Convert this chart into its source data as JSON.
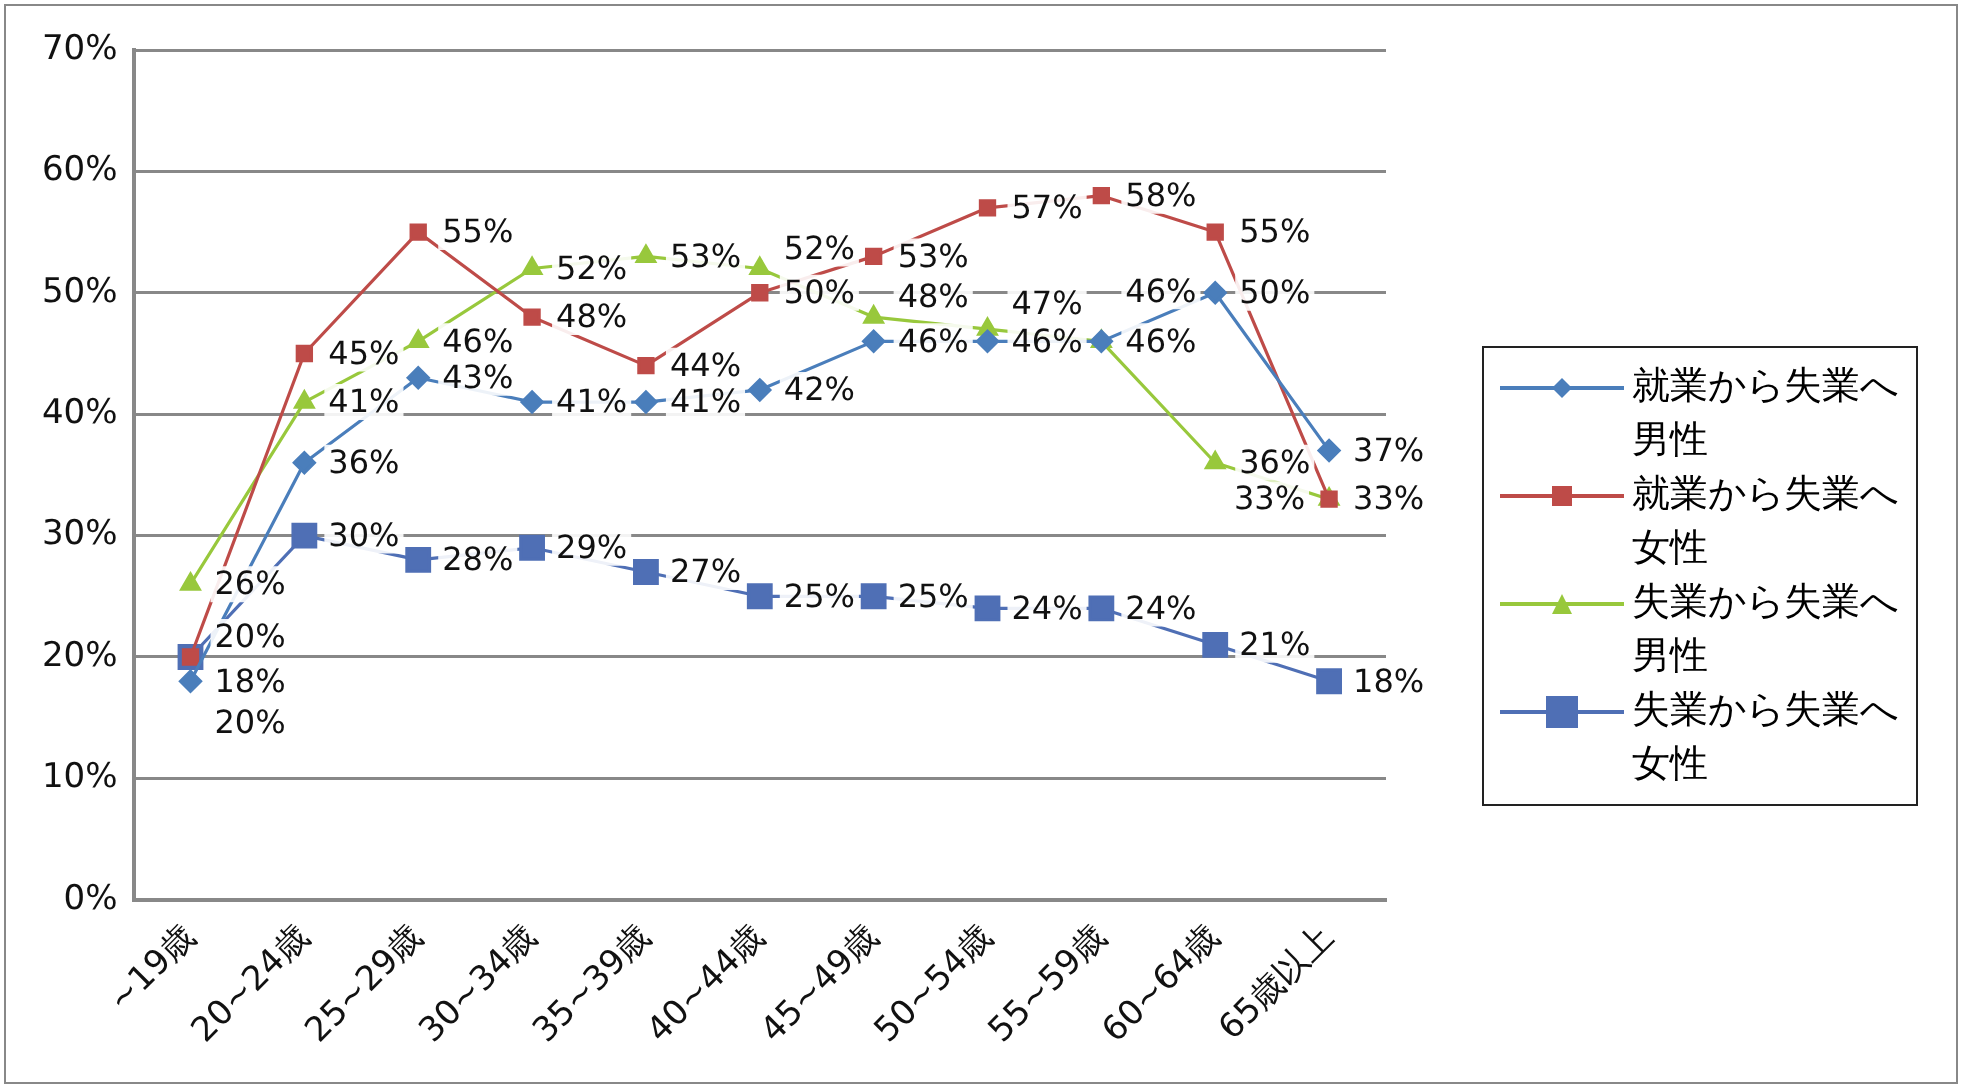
{
  "chart_data": {
    "type": "line",
    "categories": [
      "~19歳",
      "20~24歳",
      "25~29歳",
      "30~34歳",
      "35~39歳",
      "40~44歳",
      "45~49歳",
      "50~54歳",
      "55~59歳",
      "60~64歳",
      "65歳以上"
    ],
    "series": [
      {
        "name": "就業から失業へ男性",
        "color": "#4a7ebb",
        "marker": "diamond",
        "values": [
          18,
          36,
          43,
          41,
          41,
          42,
          46,
          46,
          46,
          50,
          37
        ],
        "value_labels": [
          "18%",
          "36%",
          "43%",
          "41%",
          "41%",
          "42%",
          "46%",
          "46%",
          "46%",
          "50%",
          "37%"
        ]
      },
      {
        "name": "就業から失業へ女性",
        "color": "#be4b48",
        "marker": "square",
        "values": [
          20,
          45,
          55,
          48,
          44,
          50,
          53,
          57,
          58,
          55,
          33
        ],
        "value_labels": [
          "20%",
          "45%",
          "55%",
          "48%",
          "44%",
          "50%",
          "53%",
          "57%",
          "58%",
          "55%",
          "33%"
        ]
      },
      {
        "name": "失業から失業へ男性",
        "color": "#98c83c",
        "marker": "triangle",
        "values": [
          26,
          41,
          46,
          52,
          53,
          52,
          48,
          47,
          46,
          36,
          33
        ],
        "value_labels": [
          "26%",
          "41%",
          "46%",
          "52%",
          "53%",
          "52%",
          "48%",
          "47%",
          "46%",
          "36%",
          "33%"
        ]
      },
      {
        "name": "失業から失業へ女性",
        "color": "#4f6fb5",
        "marker": "square",
        "values": [
          20,
          30,
          28,
          29,
          27,
          25,
          25,
          24,
          24,
          21,
          18
        ],
        "value_labels": [
          "20%",
          "30%",
          "28%",
          "29%",
          "27%",
          "25%",
          "25%",
          "24%",
          "24%",
          "21%",
          "18%"
        ]
      }
    ],
    "ylim": [
      0,
      70
    ],
    "yticks": [
      {
        "value": 0,
        "label": "0%"
      },
      {
        "value": 10,
        "label": "10%"
      },
      {
        "value": 20,
        "label": "20%"
      },
      {
        "value": 30,
        "label": "30%"
      },
      {
        "value": 40,
        "label": "40%"
      },
      {
        "value": 50,
        "label": "50%"
      },
      {
        "value": 60,
        "label": "60%"
      },
      {
        "value": 70,
        "label": "70%"
      }
    ],
    "grid": "y",
    "legend": "right"
  }
}
